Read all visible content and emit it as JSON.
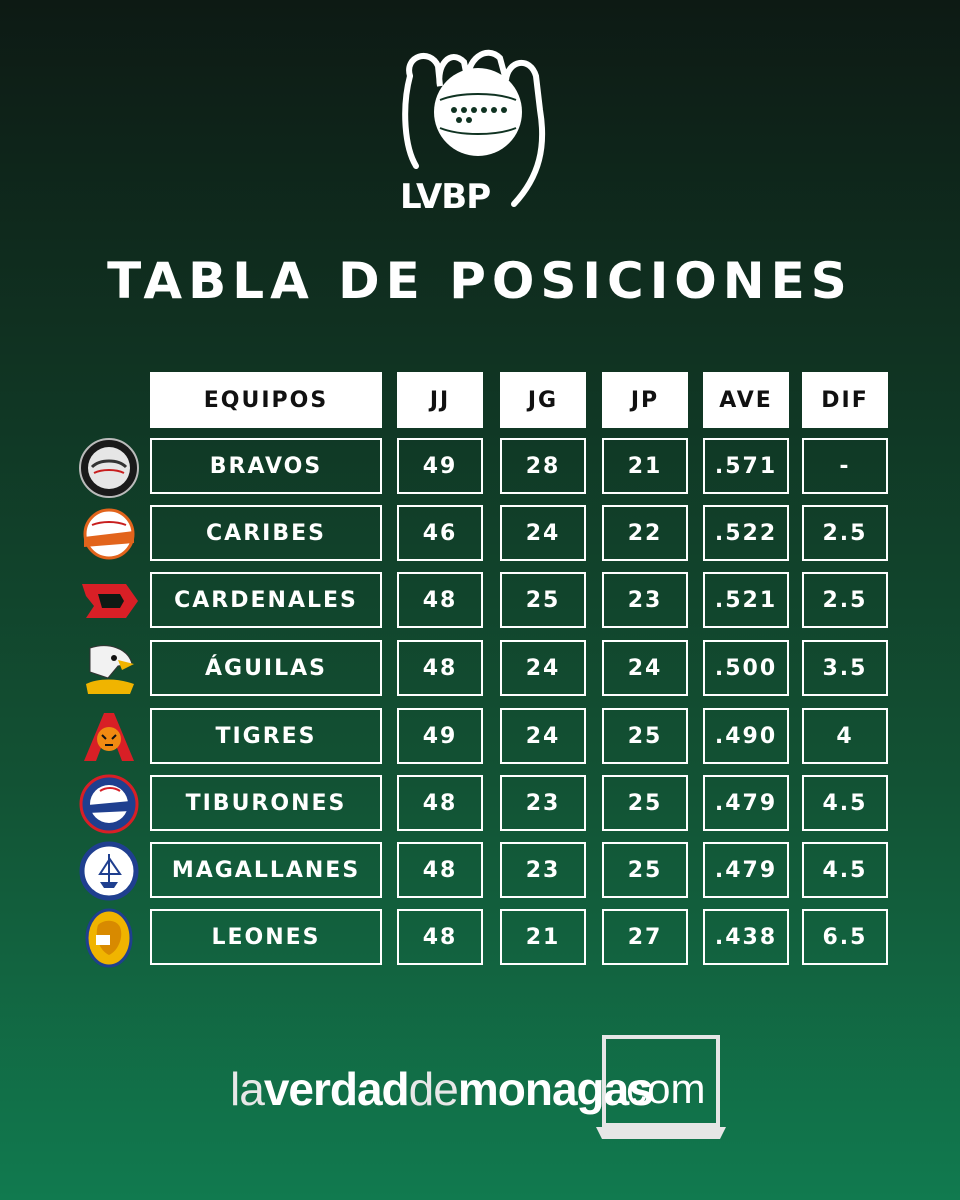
{
  "brand": {
    "logo_text": "LVBP"
  },
  "title": "TABLA DE POSICIONES",
  "table": {
    "headers": [
      "EQUIPOS",
      "JJ",
      "JG",
      "JP",
      "AVE",
      "DIF"
    ],
    "rows": [
      {
        "team": "BRAVOS",
        "jj": "49",
        "jg": "28",
        "jp": "21",
        "ave": ".571",
        "dif": "-",
        "logo": "bravos-logo-icon"
      },
      {
        "team": "CARIBES",
        "jj": "46",
        "jg": "24",
        "jp": "22",
        "ave": ".522",
        "dif": "2.5",
        "logo": "caribes-logo-icon"
      },
      {
        "team": "CARDENALES",
        "jj": "48",
        "jg": "25",
        "jp": "23",
        "ave": ".521",
        "dif": "2.5",
        "logo": "cardenales-logo-icon"
      },
      {
        "team": "ÁGUILAS",
        "jj": "48",
        "jg": "24",
        "jp": "24",
        "ave": ".500",
        "dif": "3.5",
        "logo": "aguilas-logo-icon"
      },
      {
        "team": "TIGRES",
        "jj": "49",
        "jg": "24",
        "jp": "25",
        "ave": ".490",
        "dif": "4",
        "logo": "tigres-logo-icon"
      },
      {
        "team": "TIBURONES",
        "jj": "48",
        "jg": "23",
        "jp": "25",
        "ave": ".479",
        "dif": "4.5",
        "logo": "tiburones-logo-icon"
      },
      {
        "team": "MAGALLANES",
        "jj": "48",
        "jg": "23",
        "jp": "25",
        "ave": ".479",
        "dif": "4.5",
        "logo": "magallanes-logo-icon"
      },
      {
        "team": "LEONES",
        "jj": "48",
        "jg": "21",
        "jp": "27",
        "ave": ".438",
        "dif": "6.5",
        "logo": "leones-logo-icon"
      }
    ]
  },
  "footer": {
    "site_thin_1": "la",
    "site_bold_1": "verdad",
    "site_thin_2": "de",
    "site_bold_2": "monagas",
    "site_ext": ".com"
  },
  "colors": {
    "background_top": "#0d1a14",
    "background_bottom": "#117a4f",
    "header_bg": "#ffffff",
    "header_text": "#111111",
    "border": "#ffffff"
  }
}
